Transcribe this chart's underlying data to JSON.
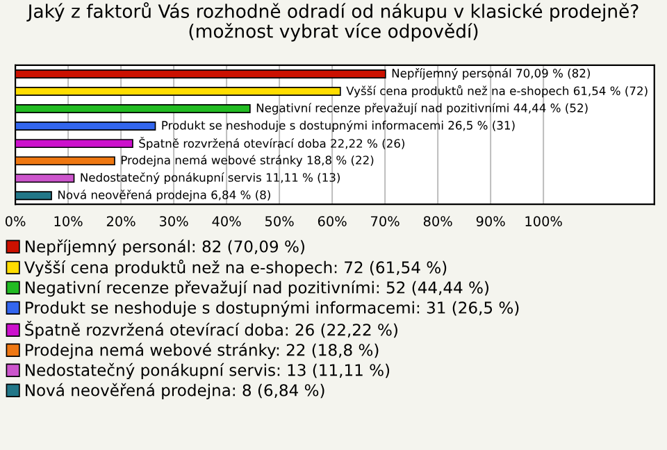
{
  "chart_data": {
    "type": "bar",
    "orientation": "horizontal",
    "title": "Jaký z faktorů Vás rozhodně odradí od nákupu v klasické prodejně?\n(možnost vybrat více odpovědí)",
    "categories": [
      null,
      null,
      null,
      null,
      null,
      null,
      null,
      null
    ],
    "series": [
      {
        "name": "Nepříjemný personál: 82 (70,09 %)",
        "color": "#cc1100",
        "values": [
          70.09,
          null,
          null,
          null,
          null,
          null,
          null,
          null
        ],
        "value_labels": [
          "Nepříjemný personál 70,09 % (82)",
          null,
          null,
          null,
          null,
          null,
          null,
          null
        ]
      },
      {
        "name": "Vyšší cena produktů než na e-shopech: 72 (61,54 %)",
        "color": "#ffdd00",
        "values": [
          null,
          61.54,
          null,
          null,
          null,
          null,
          null,
          null
        ],
        "value_labels": [
          null,
          "Vyšší cena produktů než na e-shopech 61,54 % (72)",
          null,
          null,
          null,
          null,
          null,
          null
        ]
      },
      {
        "name": "Negativní recenze převažují nad pozitivními: 52 (44,44 %)",
        "color": "#22bb22",
        "values": [
          null,
          null,
          44.44,
          null,
          null,
          null,
          null,
          null
        ],
        "value_labels": [
          null,
          null,
          "Negativní recenze převažují nad pozitivními 44,44 % (52)",
          null,
          null,
          null,
          null,
          null
        ]
      },
      {
        "name": "Produkt se neshoduje s dostupnými informacemi: 31 (26,5 %)",
        "color": "#3366ee",
        "values": [
          null,
          null,
          null,
          26.5,
          null,
          null,
          null,
          null
        ],
        "value_labels": [
          null,
          null,
          null,
          "Produkt se neshoduje s dostupnými informacemi 26,5 % (31)",
          null,
          null,
          null,
          null
        ]
      },
      {
        "name": "Špatně rozvržená otevírací doba: 26 (22,22 %)",
        "color": "#cc11cc",
        "values": [
          null,
          null,
          null,
          null,
          22.22,
          null,
          null,
          null
        ],
        "value_labels": [
          null,
          null,
          null,
          null,
          "Špatně rozvržená otevírací doba 22,22 % (26)",
          null,
          null,
          null
        ]
      },
      {
        "name": "Prodejna nemá webové stránky: 22 (18,8 %)",
        "color": "#ee7711",
        "values": [
          null,
          null,
          null,
          null,
          null,
          18.8,
          null,
          null
        ],
        "value_labels": [
          null,
          null,
          null,
          null,
          null,
          "Prodejna nemá webové stránky 18,8 % (22)",
          null,
          null
        ]
      },
      {
        "name": "Nedostatečný ponákupní servis: 13 (11,11 %)",
        "color": "#cc55cc",
        "values": [
          null,
          null,
          null,
          null,
          null,
          null,
          11.11,
          null
        ],
        "value_labels": [
          null,
          null,
          null,
          null,
          null,
          null,
          "Nedostatečný ponákupní servis 11,11 % (13)",
          null
        ]
      },
      {
        "name": "Nová neověřená prodejna: 8 (6,84 %)",
        "color": "#227788",
        "values": [
          null,
          null,
          null,
          null,
          null,
          null,
          null,
          6.84
        ],
        "value_labels": [
          null,
          null,
          null,
          null,
          null,
          null,
          null,
          "Nová neověřená prodejna 6,84 % (8)"
        ]
      }
    ],
    "xlim": [
      0,
      121
    ],
    "xticks": [
      {
        "value": 0,
        "label": "0%"
      },
      {
        "value": 10,
        "label": "10%"
      },
      {
        "value": 20,
        "label": "20%"
      },
      {
        "value": 30,
        "label": "30%"
      },
      {
        "value": 40,
        "label": "40%"
      },
      {
        "value": 50,
        "label": "50%"
      },
      {
        "value": 60,
        "label": "60%"
      },
      {
        "value": 70,
        "label": "70%"
      },
      {
        "value": 80,
        "label": "80%"
      },
      {
        "value": 90,
        "label": "90%"
      },
      {
        "value": 100,
        "label": "100%"
      }
    ],
    "grid": "x",
    "legend": "bottom"
  }
}
